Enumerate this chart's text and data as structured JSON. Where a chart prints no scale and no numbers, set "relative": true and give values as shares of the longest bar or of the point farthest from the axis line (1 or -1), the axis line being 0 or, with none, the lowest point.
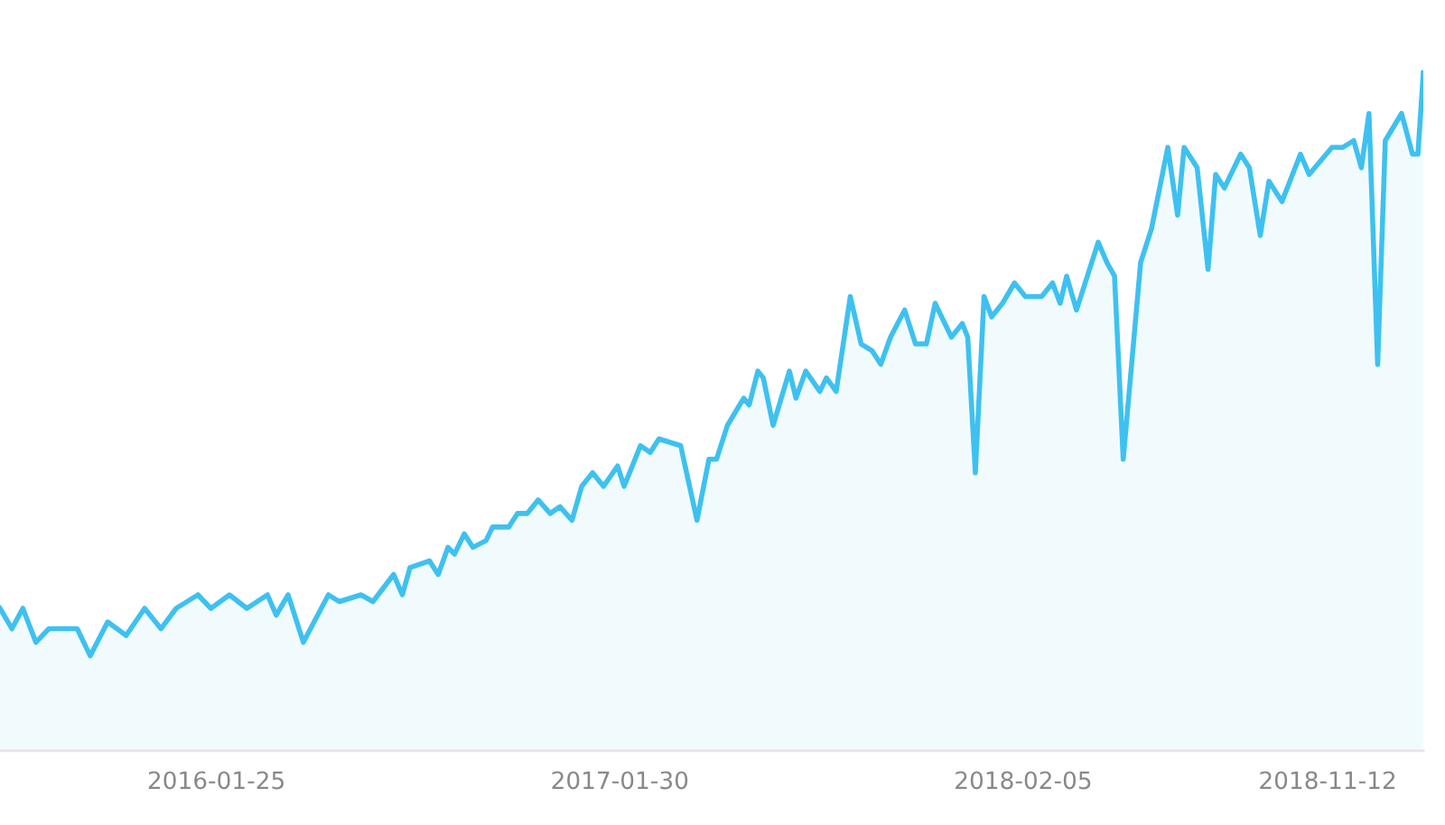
{
  "chart_data": {
    "type": "area",
    "relative": true,
    "x": [
      "2015-07-10",
      "2015-07-21",
      "2015-07-31",
      "2015-08-12",
      "2015-08-24",
      "2015-09-09",
      "2015-09-19",
      "2015-10-01",
      "2015-10-17",
      "2015-11-03",
      "2015-11-20",
      "2015-12-05",
      "2015-12-19",
      "2016-01-08",
      "2016-01-20",
      "2016-02-06",
      "2016-02-22",
      "2016-03-12",
      "2016-03-20",
      "2016-03-31",
      "2016-04-14",
      "2016-05-07",
      "2016-05-17",
      "2016-06-06",
      "2016-06-17",
      "2016-07-06",
      "2016-07-14",
      "2016-07-21",
      "2016-08-08",
      "2016-08-16",
      "2016-08-25",
      "2016-08-31",
      "2016-09-09",
      "2016-09-17",
      "2016-09-29",
      "2016-10-05",
      "2016-10-20",
      "2016-10-28",
      "2016-11-06",
      "2016-11-16",
      "2016-11-27",
      "2016-12-06",
      "2016-12-17",
      "2016-12-26",
      "2017-01-05",
      "2017-01-15",
      "2017-01-28",
      "2017-02-03",
      "2017-02-18",
      "2017-02-27",
      "2017-03-07",
      "2017-03-27",
      "2017-04-11",
      "2017-04-22",
      "2017-04-29",
      "2017-05-09",
      "2017-05-24",
      "2017-05-29",
      "2017-06-06",
      "2017-06-11",
      "2017-06-20",
      "2017-07-05",
      "2017-07-11",
      "2017-07-20",
      "2017-08-02",
      "2017-08-08",
      "2017-08-17",
      "2017-08-30",
      "2017-09-09",
      "2017-09-19",
      "2017-09-27",
      "2017-10-06",
      "2017-10-19",
      "2017-10-29",
      "2017-11-08",
      "2017-11-16",
      "2017-12-01",
      "2017-12-11",
      "2017-12-16",
      "2017-12-23",
      "2017-12-31",
      "2018-01-07",
      "2018-01-17",
      "2018-01-28",
      "2018-02-07",
      "2018-02-22",
      "2018-03-04",
      "2018-03-11",
      "2018-03-17",
      "2018-03-26",
      "2018-04-15",
      "2018-04-23",
      "2018-04-30",
      "2018-05-08",
      "2018-05-24",
      "2018-06-03",
      "2018-06-18",
      "2018-06-27",
      "2018-07-03",
      "2018-07-15",
      "2018-07-25",
      "2018-08-01",
      "2018-08-09",
      "2018-08-24",
      "2018-09-01",
      "2018-09-11",
      "2018-09-19",
      "2018-10-01",
      "2018-10-18",
      "2018-10-26",
      "2018-11-16",
      "2018-11-26",
      "2018-12-06",
      "2018-12-13",
      "2018-12-20",
      "2018-12-28",
      "2019-01-04",
      "2019-01-19",
      "2019-01-29",
      "2019-02-03",
      "2019-02-08"
    ],
    "series": [
      {
        "color": "#3ec1f0",
        "values": [
          0.21,
          0.18,
          0.21,
          0.16,
          0.18,
          0.18,
          0.18,
          0.14,
          0.19,
          0.17,
          0.21,
          0.18,
          0.21,
          0.23,
          0.21,
          0.23,
          0.21,
          0.23,
          0.2,
          0.23,
          0.16,
          0.23,
          0.22,
          0.23,
          0.22,
          0.26,
          0.23,
          0.27,
          0.28,
          0.26,
          0.3,
          0.29,
          0.32,
          0.3,
          0.31,
          0.33,
          0.33,
          0.35,
          0.35,
          0.37,
          0.35,
          0.36,
          0.34,
          0.39,
          0.41,
          0.39,
          0.42,
          0.39,
          0.45,
          0.44,
          0.46,
          0.45,
          0.34,
          0.43,
          0.43,
          0.48,
          0.52,
          0.51,
          0.56,
          0.55,
          0.48,
          0.56,
          0.52,
          0.56,
          0.53,
          0.55,
          0.53,
          0.67,
          0.6,
          0.59,
          0.57,
          0.61,
          0.65,
          0.6,
          0.6,
          0.66,
          0.61,
          0.63,
          0.61,
          0.41,
          0.67,
          0.64,
          0.66,
          0.69,
          0.67,
          0.67,
          0.69,
          0.66,
          0.7,
          0.65,
          0.75,
          0.72,
          0.7,
          0.43,
          0.72,
          0.77,
          0.89,
          0.79,
          0.89,
          0.86,
          0.71,
          0.85,
          0.83,
          0.88,
          0.86,
          0.76,
          0.84,
          0.81,
          0.88,
          0.85,
          0.89,
          0.89,
          0.9,
          0.86,
          0.94,
          0.57,
          0.9,
          0.94,
          0.88,
          0.88,
          1.0
        ]
      }
    ],
    "xlim": [
      "2015-07-10",
      "2019-02-08"
    ],
    "xticks": [
      "2016-01-25",
      "2017-01-30",
      "2018-02-05",
      "2018-11-12"
    ]
  }
}
